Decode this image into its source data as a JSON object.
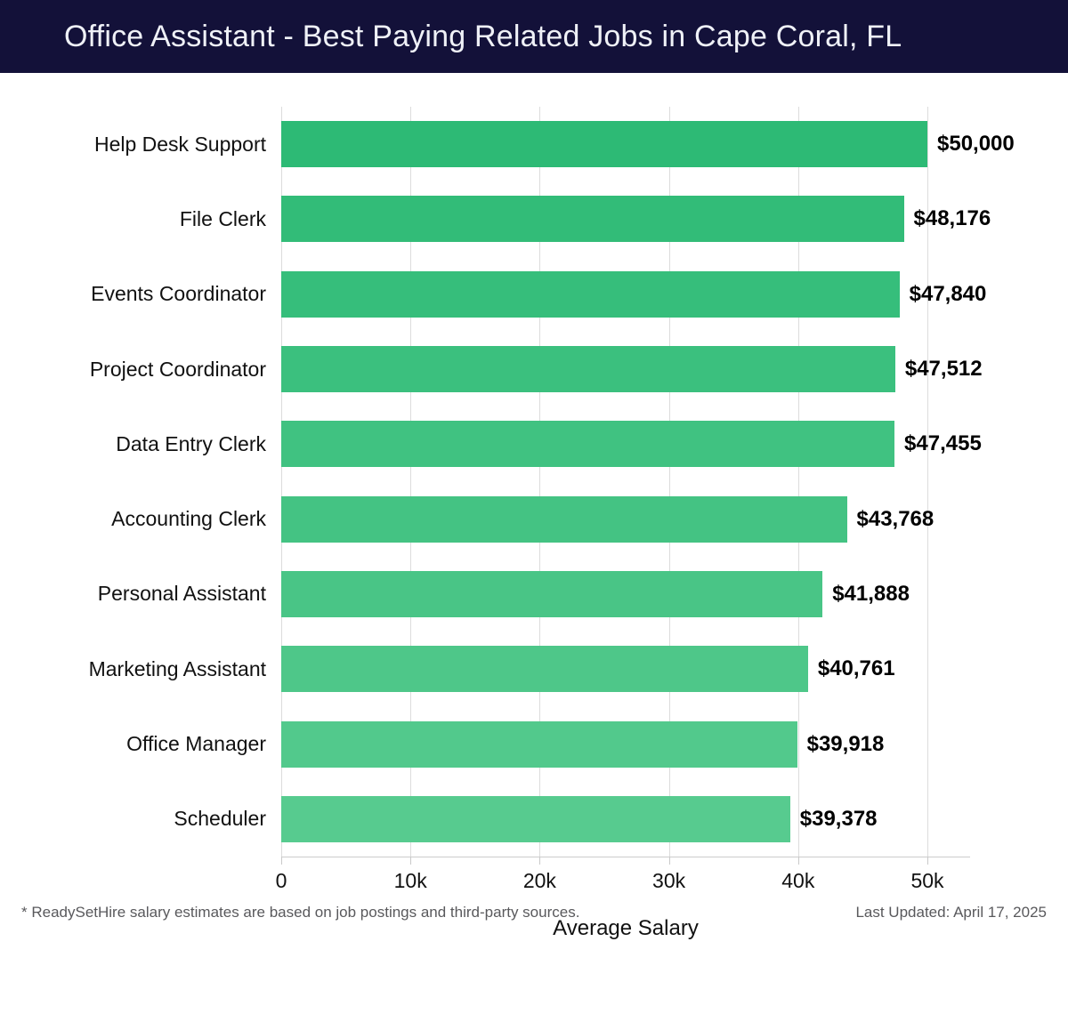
{
  "header": {
    "title": "Office Assistant - Best Paying Related Jobs in Cape Coral, FL",
    "background_color": "#131139",
    "text_color": "#eff1f7"
  },
  "chart_data": {
    "type": "bar",
    "orientation": "horizontal",
    "title": "Office Assistant - Best Paying Related Jobs in Cape Coral, FL",
    "categories": [
      "Help Desk Support",
      "File Clerk",
      "Events Coordinator",
      "Project Coordinator",
      "Data Entry Clerk",
      "Accounting Clerk",
      "Personal Assistant",
      "Marketing Assistant",
      "Office Manager",
      "Scheduler"
    ],
    "values": [
      50000,
      48176,
      47840,
      47512,
      47455,
      43768,
      41888,
      40761,
      39918,
      39378
    ],
    "value_labels": [
      "$50,000",
      "$48,176",
      "$47,840",
      "$47,512",
      "$47,455",
      "$43,768",
      "$41,888",
      "$40,761",
      "$39,918",
      "$39,378"
    ],
    "xlabel": "Average Salary",
    "ylabel": "",
    "xlim": [
      0,
      50000
    ],
    "x_ticks": [
      {
        "value": 0,
        "label": "0"
      },
      {
        "value": 10000,
        "label": "10k"
      },
      {
        "value": 20000,
        "label": "20k"
      },
      {
        "value": 30000,
        "label": "30k"
      },
      {
        "value": 40000,
        "label": "40k"
      },
      {
        "value": 50000,
        "label": "50k"
      }
    ],
    "grid": "vertical",
    "legend": "none",
    "gridline_color": "#dcdcdc",
    "bar_color_start": "#2dba75",
    "bar_color_end": "#57cb8f"
  },
  "footer": {
    "note": "* ReadySetHire salary estimates are based on job postings and third-party sources.",
    "last_updated": "Last Updated: April 17, 2025"
  }
}
